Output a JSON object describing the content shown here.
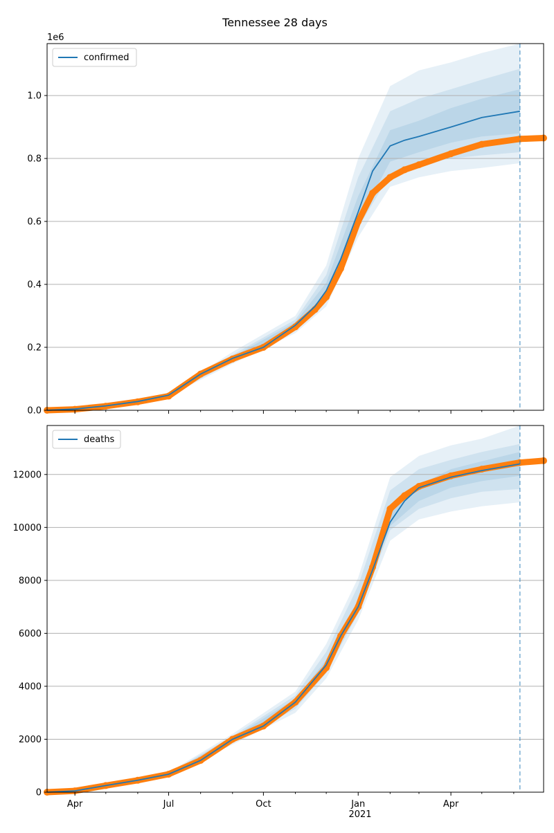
{
  "figure": {
    "title": "Tennessee 28 days"
  },
  "x_axis": {
    "tick_labels": [
      "Apr",
      "Jul",
      "Oct",
      "Jan",
      "Apr"
    ],
    "tick_dates": [
      "2020-04-01",
      "2020-07-01",
      "2020-10-01",
      "2021-01-01",
      "2021-04-01"
    ],
    "year_label": "2021",
    "range": [
      "2020-03-05",
      "2021-06-30"
    ],
    "minor_tick_dates": [
      "2020-05-01",
      "2020-06-01",
      "2020-08-01",
      "2020-09-01",
      "2020-11-01",
      "2020-12-01",
      "2021-02-01",
      "2021-03-01",
      "2021-05-01",
      "2021-06-01"
    ]
  },
  "colors": {
    "model_line": "#1f77b4",
    "observed": "#ff7f0e",
    "band": "#1f77b4",
    "grid": "#b0b0b0"
  },
  "chart_data": [
    {
      "type": "line",
      "panel": "confirmed",
      "title": "",
      "xlabel": "",
      "ylabel": "",
      "offset_label": "1e6",
      "ylim": [
        0,
        1.165
      ],
      "y_ticks": [
        0.0,
        0.2,
        0.4,
        0.6,
        0.8,
        1.0
      ],
      "y_tick_labels": [
        "0.0",
        "0.2",
        "0.4",
        "0.6",
        "0.8",
        "1.0"
      ],
      "grid": "horizontal",
      "legend": {
        "position": "top-left",
        "entries": [
          "confirmed"
        ]
      },
      "forecast_start": "2021-06-07",
      "series": [
        {
          "name": "confirmed",
          "kind": "model-median",
          "x": [
            "2020-03-05",
            "2020-04-01",
            "2020-05-01",
            "2020-06-01",
            "2020-07-01",
            "2020-08-01",
            "2020-09-01",
            "2020-10-01",
            "2020-11-01",
            "2020-11-20",
            "2020-12-01",
            "2020-12-15",
            "2021-01-01",
            "2021-01-15",
            "2021-02-01",
            "2021-02-15",
            "2021-03-01",
            "2021-04-01",
            "2021-05-01",
            "2021-06-07"
          ],
          "y": [
            0.0,
            0.004,
            0.014,
            0.028,
            0.048,
            0.115,
            0.165,
            0.2,
            0.27,
            0.33,
            0.38,
            0.48,
            0.63,
            0.76,
            0.84,
            0.858,
            0.87,
            0.9,
            0.93,
            0.95
          ]
        },
        {
          "kind": "observed",
          "x": [
            "2020-03-05",
            "2020-04-01",
            "2020-05-01",
            "2020-06-01",
            "2020-07-01",
            "2020-08-01",
            "2020-09-01",
            "2020-10-01",
            "2020-11-01",
            "2020-11-20",
            "2020-12-01",
            "2020-12-15",
            "2021-01-01",
            "2021-01-15",
            "2021-02-01",
            "2021-02-15",
            "2021-03-01",
            "2021-04-01",
            "2021-05-01",
            "2021-06-07",
            "2021-06-30"
          ],
          "y": [
            0.0,
            0.003,
            0.013,
            0.027,
            0.045,
            0.115,
            0.163,
            0.2,
            0.265,
            0.32,
            0.36,
            0.45,
            0.6,
            0.69,
            0.74,
            0.764,
            0.78,
            0.815,
            0.845,
            0.862,
            0.865
          ]
        }
      ],
      "bands": [
        {
          "x": [
            "2020-07-01",
            "2020-09-01",
            "2020-11-01",
            "2020-12-01",
            "2021-01-01",
            "2021-02-01",
            "2021-03-01",
            "2021-04-01",
            "2021-05-01",
            "2021-06-07"
          ],
          "lower": [
            0.045,
            0.148,
            0.245,
            0.33,
            0.55,
            0.71,
            0.74,
            0.76,
            0.77,
            0.785
          ],
          "upper": [
            0.055,
            0.185,
            0.3,
            0.46,
            0.8,
            1.03,
            1.08,
            1.105,
            1.135,
            1.165
          ]
        },
        {
          "x": [
            "2020-07-01",
            "2020-09-01",
            "2020-11-01",
            "2020-12-01",
            "2021-01-01",
            "2021-02-01",
            "2021-03-01",
            "2021-04-01",
            "2021-05-01",
            "2021-06-07"
          ],
          "lower": [
            0.046,
            0.155,
            0.255,
            0.35,
            0.58,
            0.75,
            0.78,
            0.8,
            0.81,
            0.82
          ],
          "upper": [
            0.053,
            0.176,
            0.288,
            0.43,
            0.74,
            0.95,
            0.99,
            1.02,
            1.05,
            1.085
          ]
        },
        {
          "x": [
            "2020-07-01",
            "2020-09-01",
            "2020-11-01",
            "2020-12-01",
            "2021-01-01",
            "2021-02-01",
            "2021-03-01",
            "2021-04-01",
            "2021-05-01",
            "2021-06-07"
          ],
          "lower": [
            0.047,
            0.16,
            0.262,
            0.365,
            0.6,
            0.79,
            0.82,
            0.85,
            0.87,
            0.88
          ],
          "upper": [
            0.051,
            0.17,
            0.28,
            0.405,
            0.68,
            0.89,
            0.92,
            0.96,
            0.99,
            1.02
          ]
        }
      ]
    },
    {
      "type": "line",
      "panel": "deaths",
      "title": "",
      "xlabel": "",
      "ylabel": "",
      "ylim": [
        0,
        13850
      ],
      "y_ticks": [
        0,
        2000,
        4000,
        6000,
        8000,
        10000,
        12000
      ],
      "y_tick_labels": [
        "0",
        "2000",
        "4000",
        "6000",
        "8000",
        "10000",
        "12000"
      ],
      "grid": "horizontal",
      "legend": {
        "position": "top-left",
        "entries": [
          "deaths"
        ]
      },
      "forecast_start": "2021-06-07",
      "series": [
        {
          "name": "deaths",
          "kind": "model-median",
          "x": [
            "2020-03-05",
            "2020-04-01",
            "2020-05-01",
            "2020-06-01",
            "2020-07-01",
            "2020-08-01",
            "2020-09-01",
            "2020-10-01",
            "2020-11-01",
            "2020-12-01",
            "2020-12-15",
            "2021-01-01",
            "2021-01-15",
            "2021-02-01",
            "2021-02-15",
            "2021-03-01",
            "2021-04-01",
            "2021-05-01",
            "2021-06-07"
          ],
          "y": [
            0,
            50,
            250,
            450,
            680,
            1200,
            2000,
            2500,
            3400,
            4800,
            5900,
            7000,
            8400,
            10200,
            11000,
            11500,
            11900,
            12150,
            12400
          ]
        },
        {
          "kind": "observed",
          "x": [
            "2020-03-05",
            "2020-04-01",
            "2020-05-01",
            "2020-06-01",
            "2020-07-01",
            "2020-08-01",
            "2020-09-01",
            "2020-10-01",
            "2020-11-01",
            "2020-12-01",
            "2020-12-15",
            "2021-01-01",
            "2021-01-15",
            "2021-02-01",
            "2021-02-15",
            "2021-03-01",
            "2021-04-01",
            "2021-05-01",
            "2021-06-07",
            "2021-06-30"
          ],
          "y": [
            0,
            50,
            250,
            450,
            680,
            1200,
            2000,
            2500,
            3400,
            4700,
            5900,
            7000,
            8500,
            10700,
            11200,
            11550,
            11950,
            12200,
            12450,
            12520
          ]
        }
      ],
      "bands": [
        {
          "x": [
            "2020-07-01",
            "2020-09-01",
            "2020-11-01",
            "2020-12-01",
            "2021-01-01",
            "2021-02-01",
            "2021-03-01",
            "2021-04-01",
            "2021-05-01",
            "2021-06-07"
          ],
          "lower": [
            600,
            1800,
            3000,
            4300,
            6500,
            9500,
            10300,
            10600,
            10800,
            10950
          ],
          "upper": [
            750,
            2200,
            3800,
            5600,
            8100,
            11900,
            12700,
            13100,
            13350,
            13850
          ]
        },
        {
          "x": [
            "2020-07-01",
            "2020-09-01",
            "2020-11-01",
            "2020-12-01",
            "2021-01-01",
            "2021-02-01",
            "2021-03-01",
            "2021-04-01",
            "2021-05-01",
            "2021-06-07"
          ],
          "lower": [
            630,
            1880,
            3150,
            4500,
            6750,
            9900,
            10700,
            11100,
            11350,
            11450
          ],
          "upper": [
            720,
            2120,
            3650,
            5300,
            7800,
            11400,
            12200,
            12550,
            12850,
            13150
          ]
        },
        {
          "x": [
            "2020-07-01",
            "2020-09-01",
            "2020-11-01",
            "2020-12-01",
            "2021-01-01",
            "2021-02-01",
            "2021-03-01",
            "2021-04-01",
            "2021-05-01",
            "2021-06-07"
          ],
          "lower": [
            650,
            1940,
            3270,
            4650,
            6880,
            10050,
            11000,
            11500,
            11750,
            11950
          ],
          "upper": [
            700,
            2060,
            3530,
            5000,
            7200,
            10650,
            11600,
            12200,
            12500,
            12850
          ]
        }
      ]
    }
  ]
}
